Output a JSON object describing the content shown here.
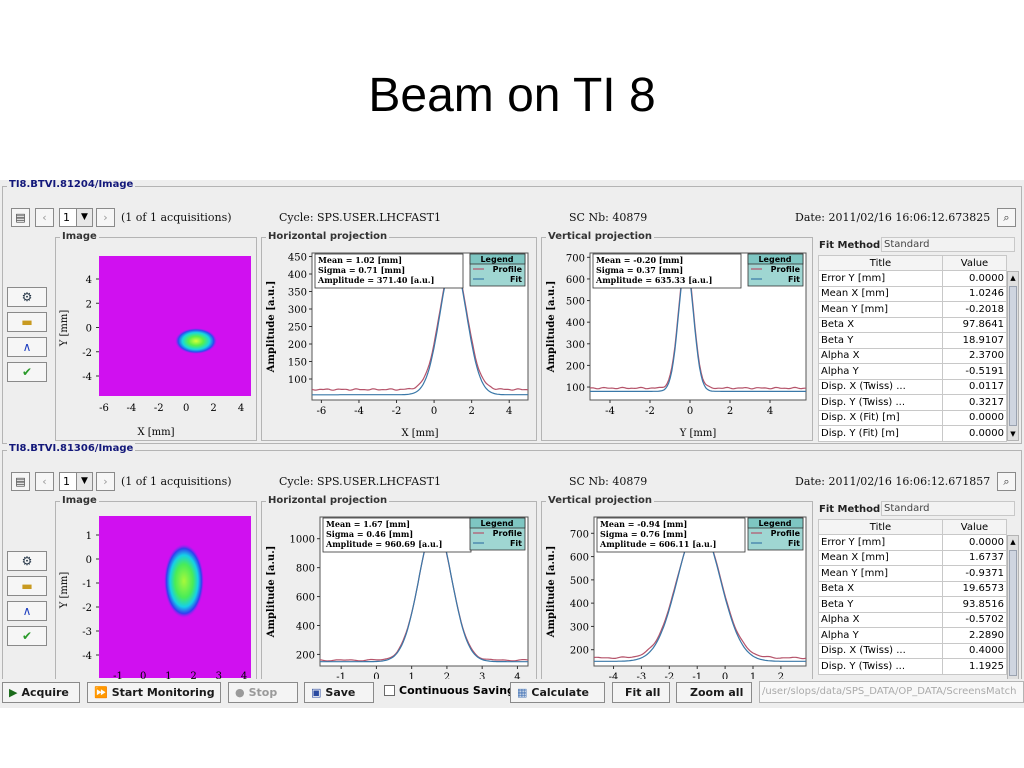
{
  "slide_title": "Beam on TI 8",
  "sections": [
    {
      "title": "TI8.BTVI.81204/Image",
      "acq_index": "1",
      "acq_text": "(1 of 1 acquisitions)",
      "cycle": "Cycle: SPS.USER.LHCFAST1",
      "sc_nb": "SC Nb: 40879",
      "date": "Date:  2011/02/16 16:06:12.673825",
      "image_panel": {
        "title": "Image",
        "xlabel": "X [mm]",
        "ylabel": "Y [mm]",
        "x_ticks": [
          "-6",
          "-4",
          "-2",
          "0",
          "2",
          "4"
        ],
        "y_ticks": [
          "4",
          "2",
          "0",
          "-2",
          "-4"
        ],
        "spot": {
          "x_mm": 1.0,
          "y_mm": 0.0,
          "sx_mm": 0.7,
          "sy_mm": 0.4
        }
      },
      "h_panel": {
        "title": "Horizontal projection",
        "xlabel": "X [mm]",
        "ylabel": "Amplitude [a.u.]",
        "x_ticks": [
          "-6",
          "-4",
          "-2",
          "0",
          "2",
          "4"
        ],
        "y_ticks": [
          "450",
          "400",
          "350",
          "300",
          "250",
          "200",
          "150",
          "100"
        ],
        "stats": [
          "Mean = 1.02 [mm]",
          "Sigma = 0.71 [mm]",
          "Amplitude = 371.40 [a.u.]"
        ],
        "legend_title": "Legend",
        "legend_items": [
          "Profile",
          "Fit"
        ]
      },
      "v_panel": {
        "title": "Vertical projection",
        "xlabel": "Y [mm]",
        "ylabel": "Amplitude [a.u.]",
        "x_ticks": [
          "-4",
          "-2",
          "0",
          "2",
          "4"
        ],
        "y_ticks": [
          "700",
          "600",
          "500",
          "400",
          "300",
          "200",
          "100"
        ],
        "stats": [
          "Mean = -0.20 [mm]",
          "Sigma = 0.37 [mm]",
          "Amplitude = 635.33 [a.u.]"
        ],
        "legend_title": "Legend",
        "legend_items": [
          "Profile",
          "Fit"
        ]
      },
      "fit_method_label": "Fit Method",
      "fit_method_value": "Standard",
      "table_headers": [
        "Title",
        "Value"
      ],
      "table_rows": [
        [
          "Error Y [mm]",
          "0.0000"
        ],
        [
          "Mean X [mm]",
          "1.0246"
        ],
        [
          "Mean Y [mm]",
          "-0.2018"
        ],
        [
          "Beta X",
          "97.8641"
        ],
        [
          "Beta Y",
          "18.9107"
        ],
        [
          "Alpha X",
          "2.3700"
        ],
        [
          "Alpha Y",
          "-0.5191"
        ],
        [
          "Disp. X (Twiss) ...",
          "0.0117"
        ],
        [
          "Disp. Y (Twiss) ...",
          "0.3217"
        ],
        [
          "Disp. X (Fit) [m]",
          "0.0000"
        ],
        [
          "Disp. Y (Fit) [m]",
          "0.0000"
        ]
      ]
    },
    {
      "title": "TI8.BTVI.81306/Image",
      "acq_index": "1",
      "acq_text": "(1 of 1 acquisitions)",
      "cycle": "Cycle: SPS.USER.LHCFAST1",
      "sc_nb": "SC Nb: 40879",
      "date": "Date:  2011/02/16 16:06:12.671857",
      "image_panel": {
        "title": "Image",
        "xlabel": "",
        "ylabel": "Y [mm]",
        "x_ticks": [
          "-1",
          "0",
          "1",
          "2",
          "3",
          "4"
        ],
        "y_ticks": [
          "1",
          "0",
          "-1",
          "-2",
          "-3",
          "-4"
        ],
        "spot": {
          "x_mm": 1.7,
          "y_mm": -1.0,
          "sx_mm": 0.45,
          "sy_mm": 0.85
        }
      },
      "h_panel": {
        "title": "Horizontal projection",
        "xlabel": "",
        "ylabel": "Amplitude [a.u.]",
        "x_ticks": [
          "-1",
          "0",
          "1",
          "2",
          "3",
          "4"
        ],
        "y_ticks": [
          "1000",
          "800",
          "600",
          "400",
          "200"
        ],
        "stats": [
          "Mean = 1.67 [mm]",
          "Sigma = 0.46 [mm]",
          "Amplitude = 960.69 [a.u.]"
        ],
        "legend_title": "Legend",
        "legend_items": [
          "Profile",
          "Fit"
        ]
      },
      "v_panel": {
        "title": "Vertical projection",
        "xlabel": "",
        "ylabel": "Amplitude [a.u.]",
        "x_ticks": [
          "-4",
          "-3",
          "-2",
          "-1",
          "0",
          "1",
          "2"
        ],
        "y_ticks": [
          "700",
          "600",
          "500",
          "400",
          "300",
          "200"
        ],
        "stats": [
          "Mean = -0.94 [mm]",
          "Sigma = 0.76 [mm]",
          "Amplitude = 606.11 [a.u.]"
        ],
        "legend_title": "Legend",
        "legend_items": [
          "Profile",
          "Fit"
        ]
      },
      "fit_method_label": "Fit Method",
      "fit_method_value": "Standard",
      "table_headers": [
        "Title",
        "Value"
      ],
      "table_rows": [
        [
          "Error Y [mm]",
          "0.0000"
        ],
        [
          "Mean X [mm]",
          "1.6737"
        ],
        [
          "Mean Y [mm]",
          "-0.9371"
        ],
        [
          "Beta X",
          "19.6573"
        ],
        [
          "Beta Y",
          "93.8516"
        ],
        [
          "Alpha X",
          "-0.5702"
        ],
        [
          "Alpha Y",
          "2.2890"
        ],
        [
          "Disp. X (Twiss) ...",
          "0.4000"
        ],
        [
          "Disp. Y (Twiss) ...",
          "1.1925"
        ]
      ]
    }
  ],
  "chart_data": [
    {
      "type": "line",
      "title": "Horizontal projection",
      "xlabel": "X [mm]",
      "ylabel": "Amplitude [a.u.]",
      "xlim": [
        -6.5,
        5
      ],
      "ylim": [
        40,
        460
      ],
      "baseline": {
        "profile": 70,
        "fit": 55
      },
      "series": [
        {
          "name": "Profile",
          "color": "#b5536a",
          "mean": 1.02,
          "sigma": 0.71,
          "peak": 440
        },
        {
          "name": "Fit",
          "color": "#3a78a8",
          "mean": 1.02,
          "sigma": 0.71,
          "peak": 435
        }
      ]
    },
    {
      "type": "line",
      "title": "Vertical projection",
      "xlabel": "Y [mm]",
      "ylabel": "Amplitude [a.u.]",
      "xlim": [
        -5,
        5.8
      ],
      "ylim": [
        40,
        720
      ],
      "baseline": {
        "profile": 95,
        "fit": 80
      },
      "series": [
        {
          "name": "Profile",
          "color": "#b5536a",
          "mean": -0.2,
          "sigma": 0.37,
          "peak": 690
        },
        {
          "name": "Fit",
          "color": "#3a78a8",
          "mean": -0.2,
          "sigma": 0.37,
          "peak": 675
        }
      ]
    },
    {
      "type": "line",
      "title": "Horizontal projection",
      "xlabel": "",
      "ylabel": "Amplitude [a.u.]",
      "xlim": [
        -1.6,
        4.3
      ],
      "ylim": [
        120,
        1150
      ],
      "baseline": {
        "profile": 160,
        "fit": 150
      },
      "series": [
        {
          "name": "Profile",
          "color": "#b5536a",
          "mean": 1.67,
          "sigma": 0.46,
          "peak": 1105
        },
        {
          "name": "Fit",
          "color": "#3a78a8",
          "mean": 1.67,
          "sigma": 0.46,
          "peak": 1110
        }
      ]
    },
    {
      "type": "line",
      "title": "Vertical projection",
      "xlabel": "",
      "ylabel": "Amplitude [a.u.]",
      "xlim": [
        -4.7,
        2.9
      ],
      "ylim": [
        130,
        770
      ],
      "baseline": {
        "profile": 165,
        "fit": 150
      },
      "series": [
        {
          "name": "Profile",
          "color": "#b5536a",
          "mean": -0.94,
          "sigma": 0.76,
          "peak": 740
        },
        {
          "name": "Fit",
          "color": "#3a78a8",
          "mean": -0.94,
          "sigma": 0.76,
          "peak": 740
        }
      ]
    }
  ],
  "bottom_bar": {
    "acquire": "Acquire",
    "start_monitoring": "Start Monitoring",
    "stop": "Stop",
    "save": "Save",
    "continuous_saving": "Continuous Saving",
    "calculate": "Calculate",
    "fit_all": "Fit all",
    "zoom_all": "Zoom all",
    "path": "/user/slops/data/SPS_DATA/OP_DATA/ScreensMatch"
  },
  "colors": {
    "section_title": "#13187a",
    "profile": "#b5536a",
    "fit": "#3a78a8",
    "legend_bg": "#9fd6d2",
    "image_bg": "#d010f0"
  }
}
